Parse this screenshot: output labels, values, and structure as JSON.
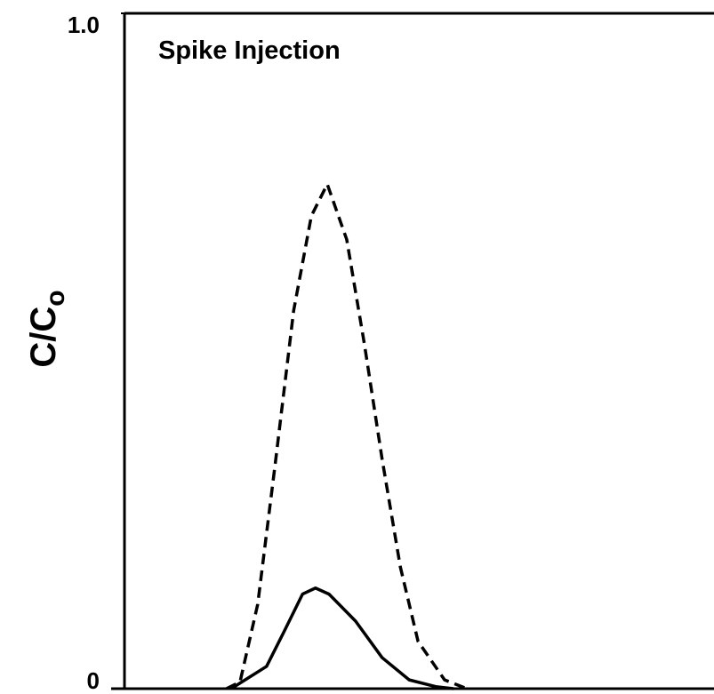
{
  "chart_data": {
    "type": "line",
    "title": "Spike Injection",
    "ylabel": {
      "main": "C/C",
      "sub": "o"
    },
    "ylim": [
      0,
      1
    ],
    "yticks": [
      {
        "value": 1,
        "label": "1.0"
      },
      0
    ],
    "xlim": [
      0,
      100
    ],
    "series": [
      {
        "color": "#000000",
        "linestyle": "dashed",
        "x": [
          17.3,
          19.6,
          22.6,
          25.6,
          28.7,
          31.7,
          34.4,
          37.7,
          40.7,
          43.7,
          46.8,
          49.8,
          54.3,
          58.1
        ],
        "values": [
          0,
          0.01,
          0.125,
          0.335,
          0.56,
          0.7,
          0.747,
          0.665,
          0.51,
          0.34,
          0.18,
          0.07,
          0.013,
          0
        ]
      },
      {
        "color": "#000000",
        "linestyle": "solid",
        "x": [
          18.1,
          24.1,
          27.1,
          30.2,
          32.4,
          34.7,
          39.2,
          43.7,
          48.3,
          52.8,
          55.8
        ],
        "values": [
          0,
          0.033,
          0.085,
          0.14,
          0.149,
          0.14,
          0.1,
          0.046,
          0.013,
          0.003,
          0
        ]
      }
    ]
  }
}
